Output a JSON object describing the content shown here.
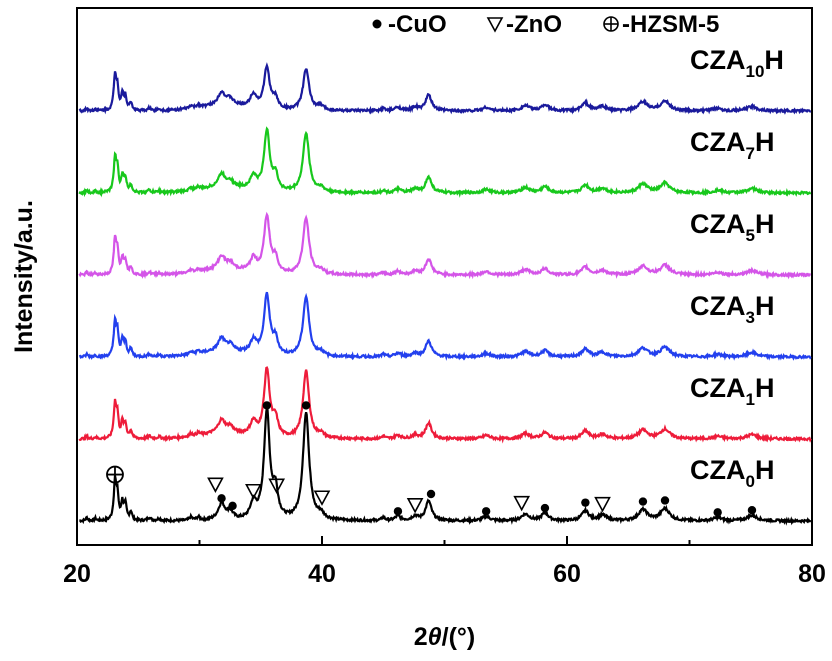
{
  "chart_data": {
    "type": "line",
    "xlabel_prefix": "2",
    "xlabel_theta": "θ",
    "xlabel_suffix": "/(°)",
    "ylabel": "Intensity/a.u.",
    "xlim": [
      20,
      80
    ],
    "x_ticks": [
      "20",
      "40",
      "60",
      "80"
    ],
    "legend": [
      {
        "marker": "●",
        "label": "-CuO"
      },
      {
        "marker": "▽",
        "label": "-ZnO"
      },
      {
        "marker": "⊕",
        "label": "-HZSM-5"
      }
    ],
    "series": [
      {
        "name_base": "CZA",
        "name_sub": "0",
        "name_tail": "H",
        "color": "#000000",
        "baseline": 0,
        "main_scale": 1.0
      },
      {
        "name_base": "CZA",
        "name_sub": "1",
        "name_tail": "H",
        "color": "#ee1c3a",
        "baseline": 1,
        "main_scale": 0.62
      },
      {
        "name_base": "CZA",
        "name_sub": "3",
        "name_tail": "H",
        "color": "#2340ee",
        "baseline": 2,
        "main_scale": 0.55
      },
      {
        "name_base": "CZA",
        "name_sub": "5",
        "name_tail": "H",
        "color": "#d455e8",
        "baseline": 3,
        "main_scale": 0.52
      },
      {
        "name_base": "CZA",
        "name_sub": "7",
        "name_tail": "H",
        "color": "#18c81c",
        "baseline": 4,
        "main_scale": 0.55
      },
      {
        "name_base": "CZA",
        "name_sub": "10",
        "name_tail": "H",
        "color": "#1a1a9c",
        "baseline": 5,
        "main_scale": 0.38
      }
    ],
    "peaks": [
      {
        "pos": 23.1,
        "h": 0.36,
        "w": 0.12
      },
      {
        "pos": 23.3,
        "h": 0.22,
        "w": 0.1
      },
      {
        "pos": 23.7,
        "h": 0.16,
        "w": 0.12
      },
      {
        "pos": 23.95,
        "h": 0.14,
        "w": 0.12
      },
      {
        "pos": 24.4,
        "h": 0.08,
        "w": 0.12
      },
      {
        "pos": 20.8,
        "h": 0.03,
        "w": 0.1
      },
      {
        "pos": 21.5,
        "h": 0.02,
        "w": 0.1
      },
      {
        "pos": 25.9,
        "h": 0.03,
        "w": 0.15
      },
      {
        "pos": 26.7,
        "h": 0.02,
        "w": 0.15
      },
      {
        "pos": 29.3,
        "h": 0.03,
        "w": 0.15
      },
      {
        "pos": 29.9,
        "h": 0.03,
        "w": 0.15
      },
      {
        "pos": 31.8,
        "h": 0.15,
        "w": 0.35
      },
      {
        "pos": 32.5,
        "h": 0.07,
        "w": 0.3
      },
      {
        "pos": 34.4,
        "h": 0.15,
        "w": 0.3
      },
      {
        "pos": 35.5,
        "h": 1.0,
        "w": 0.28
      },
      {
        "pos": 36.2,
        "h": 0.25,
        "w": 0.25
      },
      {
        "pos": 38.7,
        "h": 1.0,
        "w": 0.3
      },
      {
        "pos": 39.9,
        "h": 0.05,
        "w": 0.3
      },
      {
        "pos": 45.0,
        "h": 0.03,
        "w": 0.15
      },
      {
        "pos": 46.2,
        "h": 0.04,
        "w": 0.3
      },
      {
        "pos": 47.6,
        "h": 0.04,
        "w": 0.3
      },
      {
        "pos": 48.7,
        "h": 0.18,
        "w": 0.3
      },
      {
        "pos": 53.4,
        "h": 0.04,
        "w": 0.35
      },
      {
        "pos": 56.6,
        "h": 0.06,
        "w": 0.4
      },
      {
        "pos": 58.2,
        "h": 0.07,
        "w": 0.35
      },
      {
        "pos": 61.5,
        "h": 0.09,
        "w": 0.35
      },
      {
        "pos": 62.9,
        "h": 0.05,
        "w": 0.4
      },
      {
        "pos": 66.2,
        "h": 0.1,
        "w": 0.45
      },
      {
        "pos": 68.0,
        "h": 0.11,
        "w": 0.45
      },
      {
        "pos": 72.3,
        "h": 0.03,
        "w": 0.4
      },
      {
        "pos": 75.1,
        "h": 0.05,
        "w": 0.5
      }
    ],
    "annotations": [
      {
        "symbol": "⊕",
        "x": 23.1,
        "y_rel": 0.43
      },
      {
        "symbol": "▽",
        "x": 34.4,
        "y_rel": 0.28
      },
      {
        "symbol": "●",
        "x": 31.8,
        "y_rel": 0.21
      },
      {
        "symbol": "●",
        "x": 32.7,
        "y_rel": 0.14
      },
      {
        "symbol": "▽",
        "x": 31.3,
        "y_rel": 0.34
      },
      {
        "symbol": "●",
        "x": 35.5,
        "y_rel": 1.07
      },
      {
        "symbol": "▽",
        "x": 36.3,
        "y_rel": 0.33
      },
      {
        "symbol": "●",
        "x": 38.7,
        "y_rel": 1.07
      },
      {
        "symbol": "▽",
        "x": 40.0,
        "y_rel": 0.22
      },
      {
        "symbol": "●",
        "x": 46.2,
        "y_rel": 0.09
      },
      {
        "symbol": "▽",
        "x": 47.6,
        "y_rel": 0.15
      },
      {
        "symbol": "●",
        "x": 48.9,
        "y_rel": 0.25
      },
      {
        "symbol": "●",
        "x": 53.4,
        "y_rel": 0.09
      },
      {
        "symbol": "▽",
        "x": 56.3,
        "y_rel": 0.17
      },
      {
        "symbol": "●",
        "x": 58.2,
        "y_rel": 0.12
      },
      {
        "symbol": "●",
        "x": 61.5,
        "y_rel": 0.17
      },
      {
        "symbol": "▽",
        "x": 62.9,
        "y_rel": 0.16
      },
      {
        "symbol": "●",
        "x": 66.2,
        "y_rel": 0.18
      },
      {
        "symbol": "●",
        "x": 68.0,
        "y_rel": 0.19
      },
      {
        "symbol": "●",
        "x": 72.3,
        "y_rel": 0.08
      },
      {
        "symbol": "●",
        "x": 75.1,
        "y_rel": 0.1
      }
    ]
  }
}
